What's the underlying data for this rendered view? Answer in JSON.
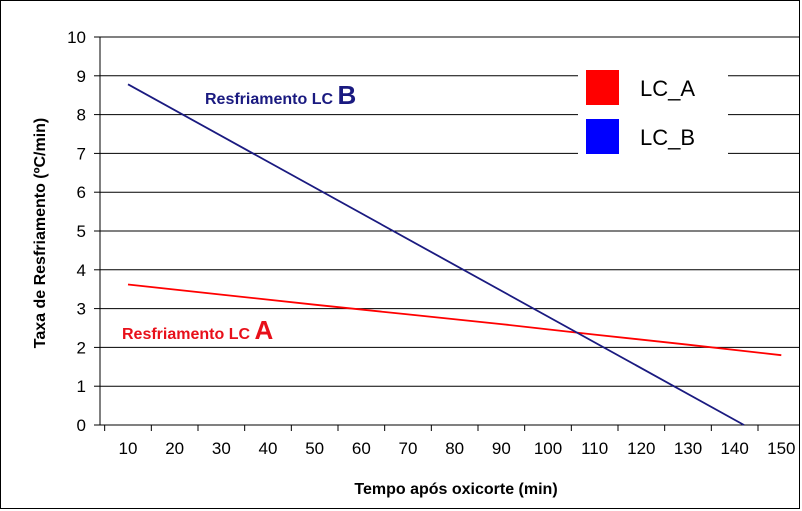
{
  "chart_data": {
    "type": "line",
    "xlabel": "Tempo após oxicorte (min)",
    "ylabel": "Taxa de Resfriamento (ºC/min)",
    "xlim": [
      4,
      154
    ],
    "ylim": [
      0,
      10
    ],
    "x_ticks": [
      10,
      20,
      30,
      40,
      50,
      60,
      70,
      80,
      90,
      100,
      110,
      120,
      130,
      140,
      150
    ],
    "y_ticks": [
      0,
      1,
      2,
      3,
      4,
      5,
      6,
      7,
      8,
      9,
      10
    ],
    "grid": "horizontal",
    "legend_position": "top-right",
    "series": [
      {
        "name": "LC_A",
        "color": "#FF0000",
        "x": [
          10,
          30,
          50,
          70,
          90,
          110,
          130,
          150
        ],
        "y": [
          3.62,
          3.36,
          3.1,
          2.85,
          2.6,
          2.33,
          2.07,
          1.8
        ]
      },
      {
        "name": "LC_B",
        "color": "#0000FF",
        "line_color": "#1A1A80",
        "x": [
          10,
          142
        ],
        "y": [
          8.78,
          0
        ]
      }
    ],
    "annotations": [
      {
        "text": "Resfriamento LC ",
        "letter": "A",
        "color": "#E8101A"
      },
      {
        "text": "Resfriamento LC ",
        "letter": "B",
        "color": "#1A1A80"
      }
    ]
  }
}
